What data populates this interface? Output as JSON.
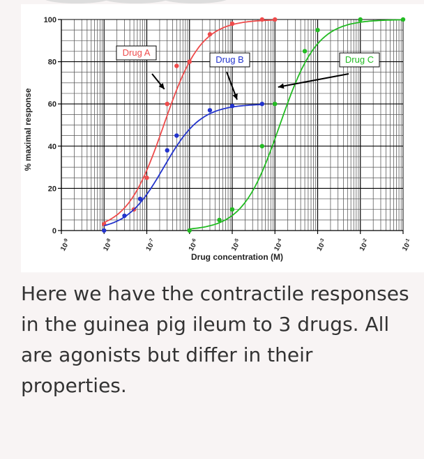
{
  "caption": "Here we have the contractile responses in the guinea pig ileum to 3 drugs. All are agonists but differ in their properties.",
  "chart_data": {
    "type": "line",
    "title": "",
    "xlabel": "Drug concentration (M)",
    "ylabel": "% maximal response",
    "x_scale": "log",
    "xlim": [
      1e-09,
      0.1
    ],
    "ylim": [
      0,
      100
    ],
    "grid": true,
    "x_ticks": [
      {
        "value": 1e-09,
        "base": "10",
        "exp": "-9"
      },
      {
        "value": 1e-08,
        "base": "10",
        "exp": "-8"
      },
      {
        "value": 1e-07,
        "base": "10",
        "exp": "-7"
      },
      {
        "value": 1e-06,
        "base": "10",
        "exp": "-6"
      },
      {
        "value": 1e-05,
        "base": "10",
        "exp": "-5"
      },
      {
        "value": 0.0001,
        "base": "10",
        "exp": "-4"
      },
      {
        "value": 0.001,
        "base": "10",
        "exp": "-3"
      },
      {
        "value": 0.01,
        "base": "10",
        "exp": "-2"
      },
      {
        "value": 0.1,
        "base": "10",
        "exp": "-1"
      }
    ],
    "y_ticks": [
      0,
      20,
      40,
      60,
      80,
      100
    ],
    "series": [
      {
        "name": "Drug A",
        "color": "#ee4b4b",
        "emax": 100,
        "ec50": 2.5e-07,
        "hill": 1,
        "x": [
          1e-08,
          5e-08,
          1e-07,
          3e-07,
          5e-07,
          1e-06,
          3e-06,
          1e-05,
          5e-05,
          0.0001
        ],
        "y": [
          3,
          10,
          25,
          60,
          78,
          80,
          93,
          98,
          100,
          100
        ]
      },
      {
        "name": "Drug B",
        "color": "#2233cc",
        "emax": 60,
        "ec50": 2.5e-07,
        "hill": 1,
        "x": [
          1e-08,
          3e-08,
          7e-08,
          3e-07,
          5e-07,
          3e-06,
          1e-05,
          5e-05
        ],
        "y": [
          0,
          7,
          15,
          38,
          45,
          57,
          59,
          60
        ]
      },
      {
        "name": "Drug C",
        "color": "#22bb22",
        "emax": 100,
        "ec50": 0.00013,
        "hill": 1,
        "x": [
          1e-06,
          5e-06,
          1e-05,
          5e-05,
          0.0001,
          0.0005,
          0.001,
          0.01,
          0.1
        ],
        "y": [
          0,
          5,
          10,
          40,
          60,
          85,
          95,
          100,
          100
        ]
      }
    ],
    "annotations": [
      {
        "text": "Drug A",
        "series": "Drug A",
        "at_x": 3e-07,
        "at_y": 67
      },
      {
        "text": "Drug B",
        "series": "Drug B",
        "at_x": 1.3e-05,
        "at_y": 62
      },
      {
        "text": "Drug C",
        "series": "Drug C",
        "at_x": 0.00011,
        "at_y": 68
      }
    ]
  }
}
